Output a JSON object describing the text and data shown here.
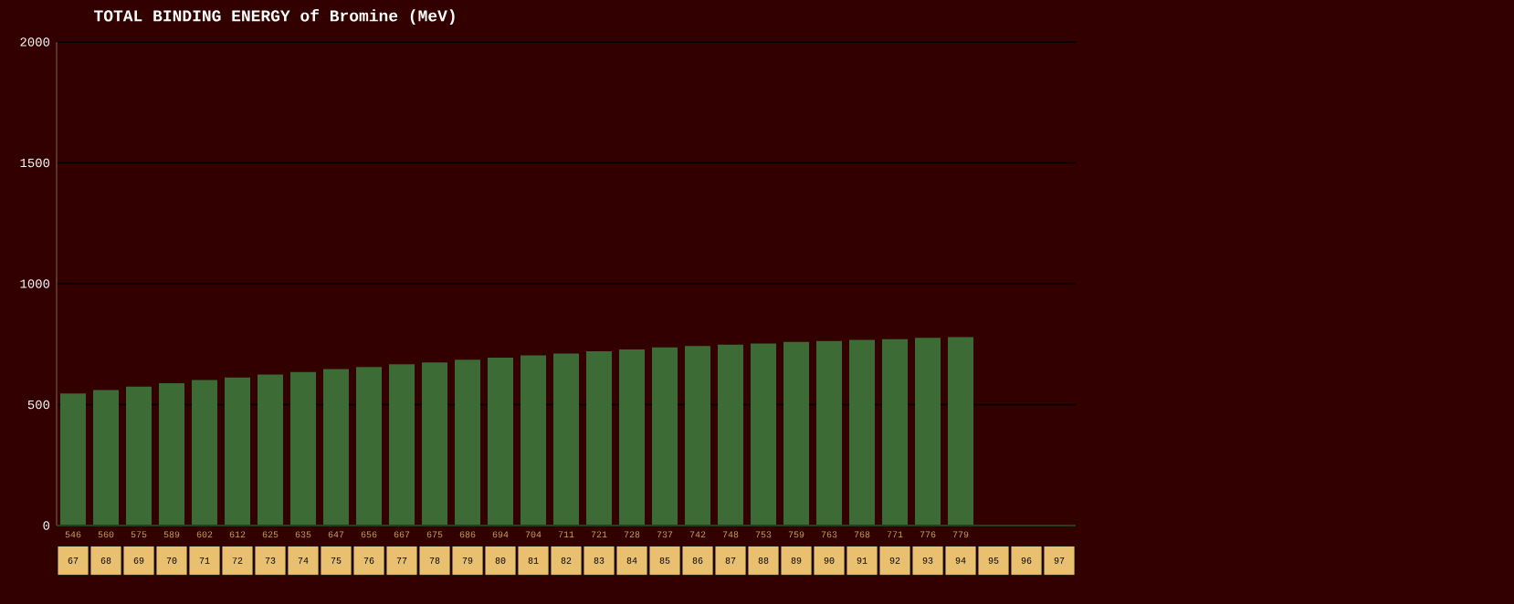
{
  "chart_data": {
    "type": "bar",
    "title": "TOTAL BINDING ENERGY of Bromine (MeV)",
    "categories": [
      "67",
      "68",
      "69",
      "70",
      "71",
      "72",
      "73",
      "74",
      "75",
      "76",
      "77",
      "78",
      "79",
      "80",
      "81",
      "82",
      "83",
      "84",
      "85",
      "86",
      "87",
      "88",
      "89",
      "90",
      "91",
      "92",
      "93",
      "94",
      "95",
      "96",
      "97"
    ],
    "values": [
      546,
      560,
      575,
      589,
      602,
      612,
      625,
      635,
      647,
      656,
      667,
      675,
      686,
      694,
      704,
      711,
      721,
      728,
      737,
      742,
      748,
      753,
      759,
      763,
      768,
      771,
      776,
      779,
      null,
      null,
      null
    ],
    "color": "#3d6b35",
    "ylim": [
      0,
      2000
    ],
    "yticks": [
      0,
      500,
      1000,
      1500,
      2000
    ],
    "grid": "y",
    "data_labels": true
  }
}
